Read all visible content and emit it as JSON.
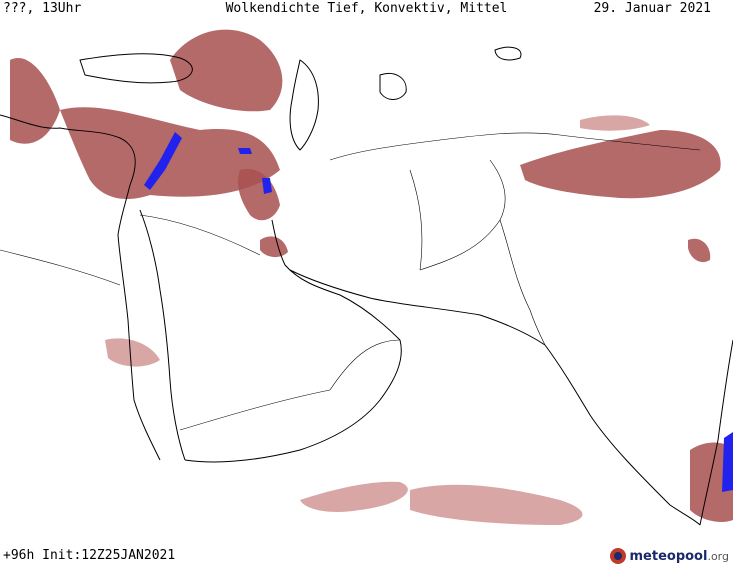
{
  "header": {
    "left": "???, 13Uhr",
    "title": "Wolkendichte  Tief, Konvektiv, Mittel",
    "date": "29. Januar 2021"
  },
  "footer": {
    "run": "+96h Init:12Z25JAN2021"
  },
  "logo": {
    "name": "meteopool",
    "tld": ".org"
  },
  "colors": {
    "cloud": "#a85050",
    "convective": "#2222ee"
  }
}
